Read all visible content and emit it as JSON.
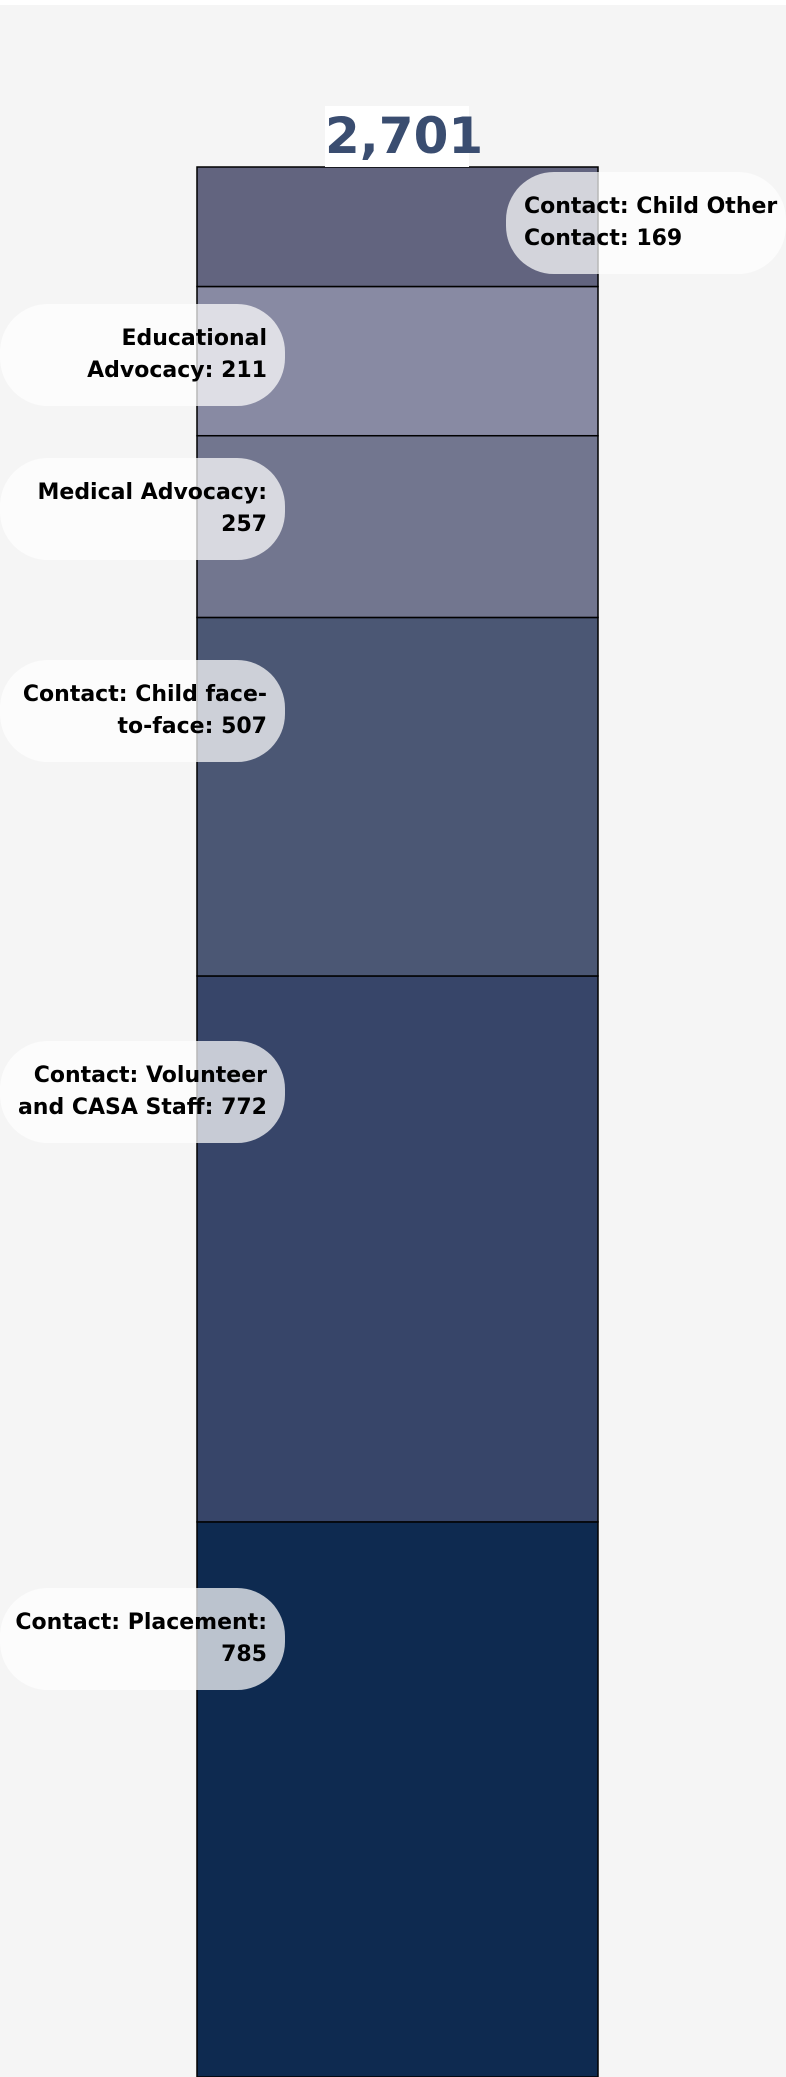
{
  "chart_data": {
    "type": "stacked_bar",
    "total_label": "2,701",
    "ylim": [
      0,
      2701
    ],
    "series": [
      {
        "name": "Contact: Placement:",
        "color": "#0e2a50",
        "values": [
          785
        ]
      },
      {
        "name": "Contact: Volunteer and CASA Staff:",
        "color": "#374569",
        "values": [
          772
        ]
      },
      {
        "name": "Contact: Child face-to-face:",
        "color": "#4b5774",
        "values": [
          507
        ]
      },
      {
        "name": "Medical Advocacy:",
        "color": "#72768f",
        "values": [
          257
        ]
      },
      {
        "name": "Educational Advocacy:",
        "color": "#888aa3",
        "values": [
          211
        ]
      },
      {
        "name": "Contact: Child Other Contact:",
        "color": "#62647f",
        "values": [
          169
        ]
      }
    ]
  }
}
